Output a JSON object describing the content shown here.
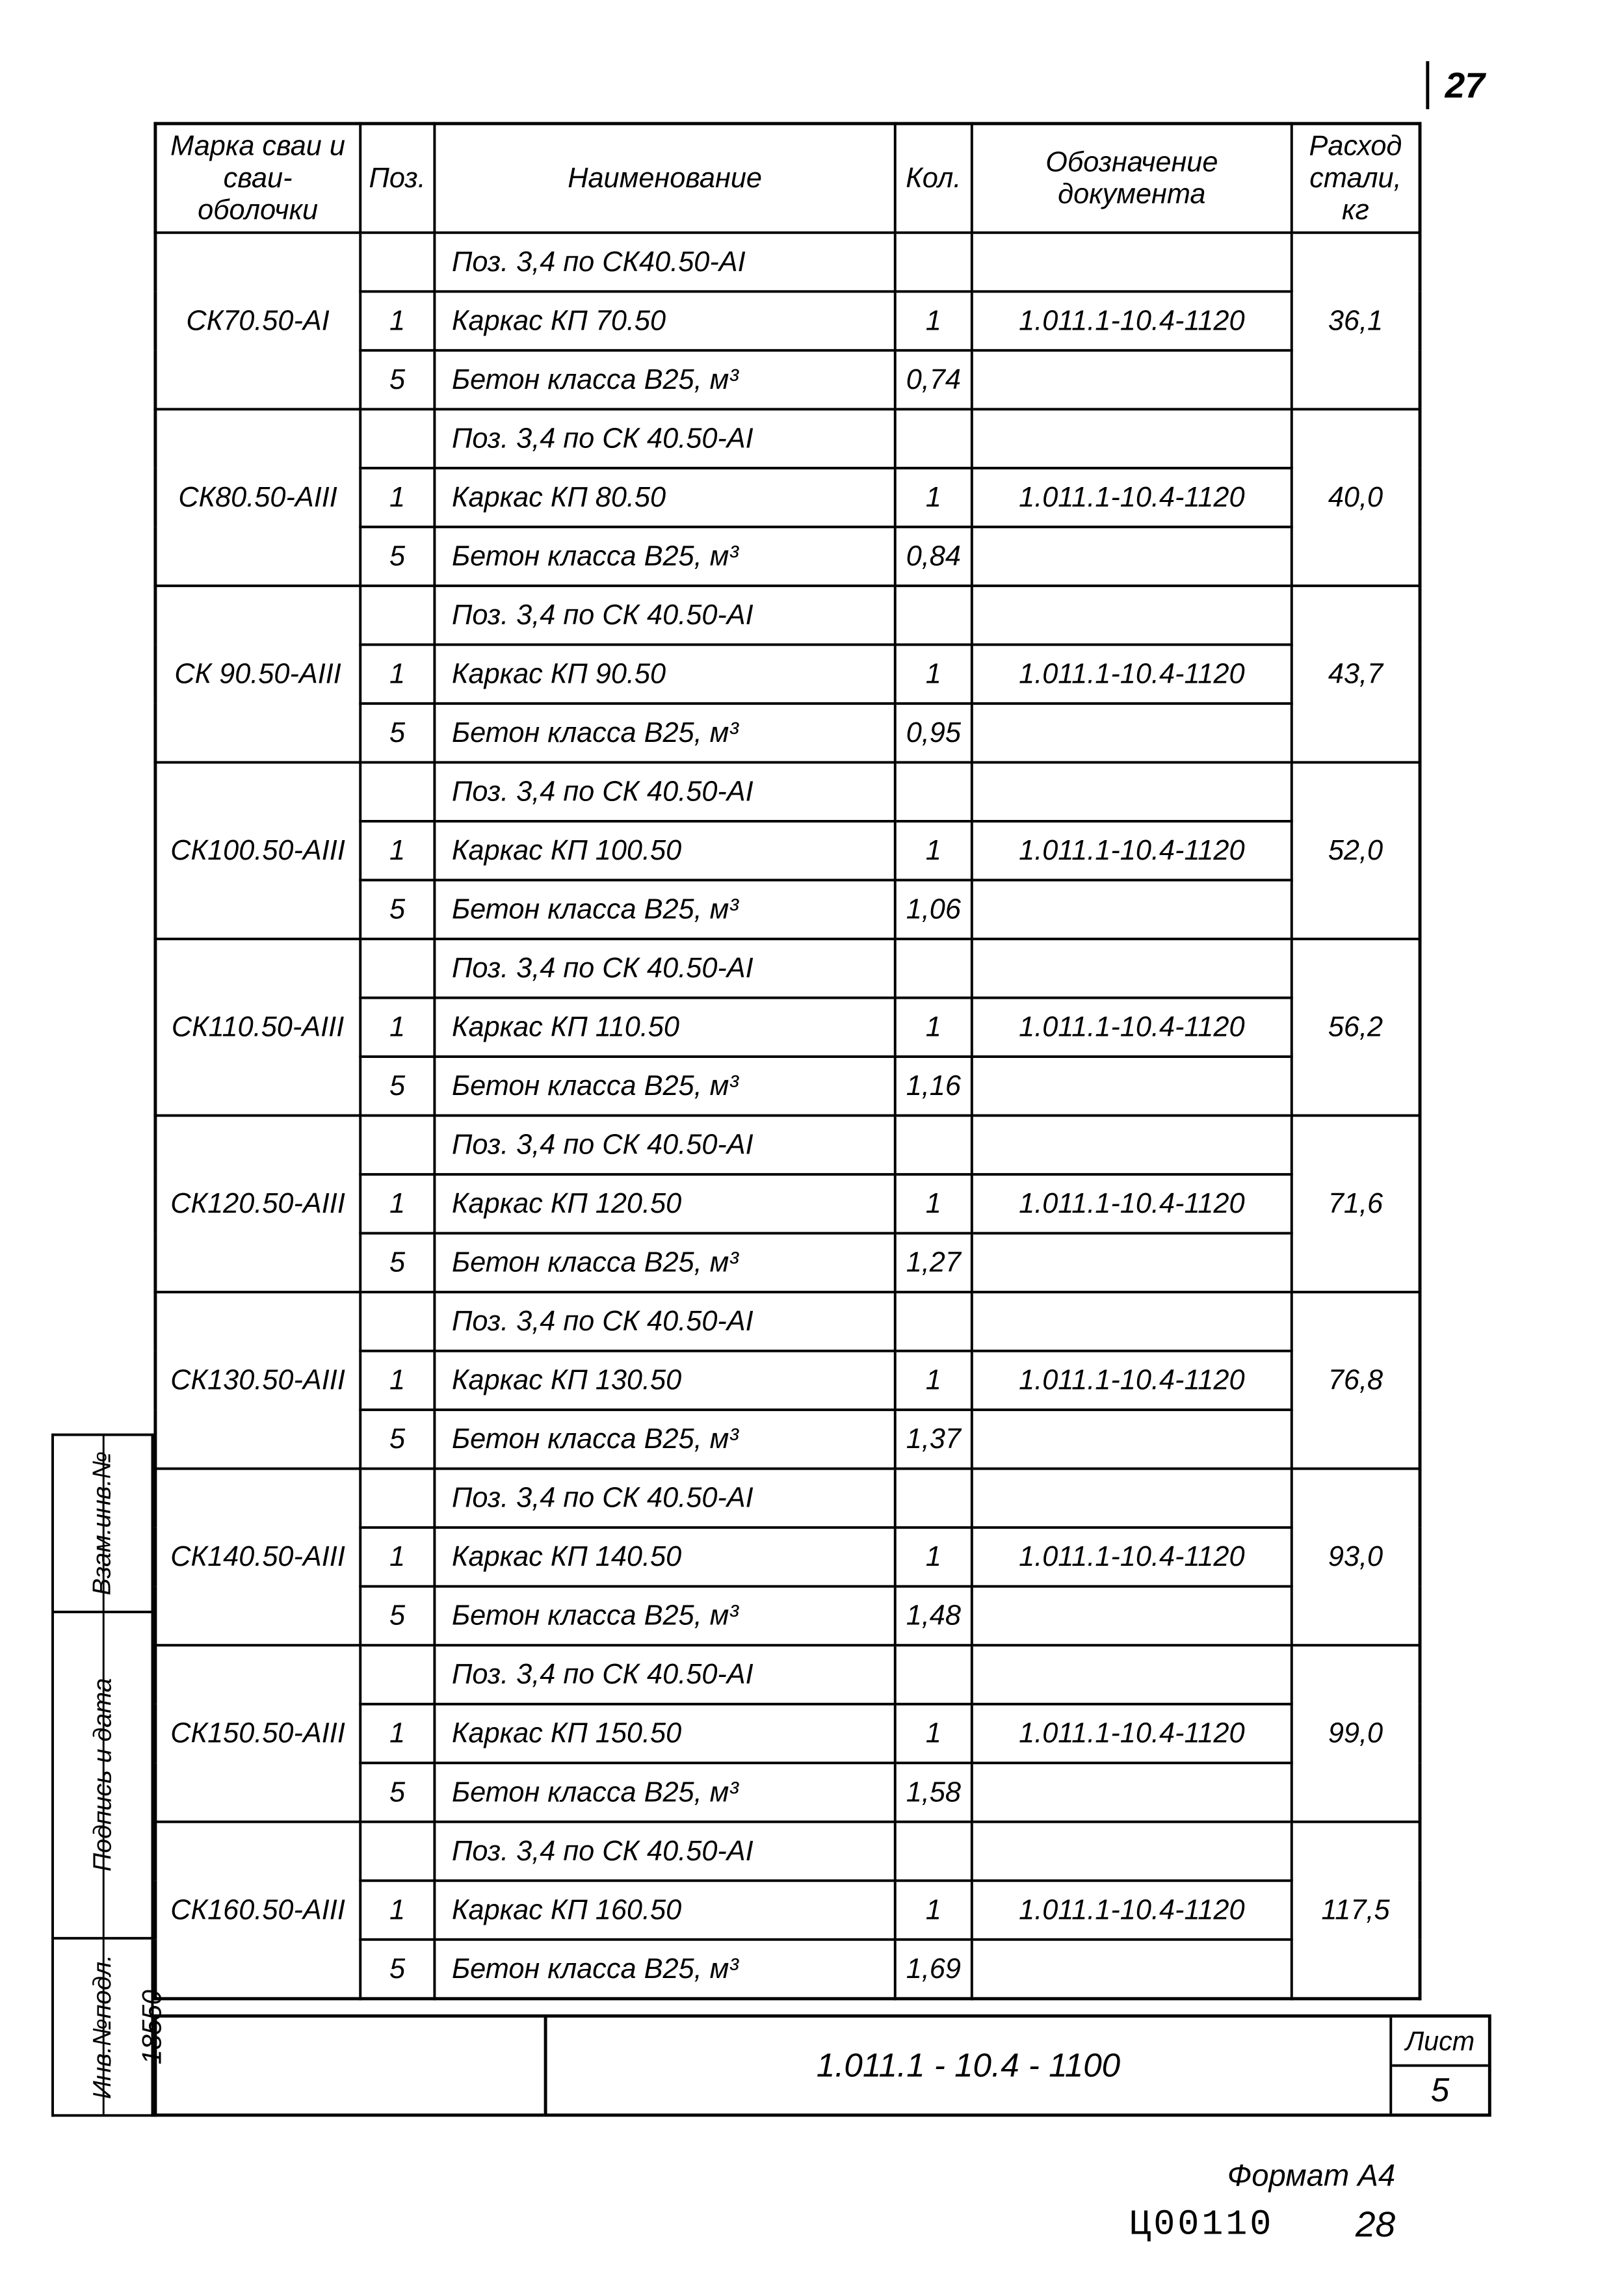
{
  "page_number_top": "27",
  "headers": {
    "marka": "Марка сваи и сваи-оболочки",
    "poz": "Поз.",
    "naim": "Наименование",
    "kol": "Кол.",
    "doc": "Обозначение документа",
    "ras": "Расход стали, кг"
  },
  "groups": [
    {
      "marka": "СК70.50-АI",
      "ras": "36,1",
      "rows": [
        {
          "poz": "",
          "naim": "Поз. 3,4 по СК40.50-АI",
          "kol": "",
          "doc": ""
        },
        {
          "poz": "1",
          "naim": "Каркас КП 70.50",
          "kol": "1",
          "doc": "1.011.1-10.4-1120"
        },
        {
          "poz": "5",
          "naim": "Бетон класса В25, м³",
          "kol": "0,74",
          "doc": ""
        }
      ]
    },
    {
      "marka": "СК80.50-АIII",
      "ras": "40,0",
      "rows": [
        {
          "poz": "",
          "naim": "Поз. 3,4 по СК 40.50-АI",
          "kol": "",
          "doc": ""
        },
        {
          "poz": "1",
          "naim": "Каркас КП 80.50",
          "kol": "1",
          "doc": "1.011.1-10.4-1120"
        },
        {
          "poz": "5",
          "naim": "Бетон класса В25, м³",
          "kol": "0,84",
          "doc": ""
        }
      ]
    },
    {
      "marka": "СК 90.50-АIII",
      "ras": "43,7",
      "rows": [
        {
          "poz": "",
          "naim": "Поз. 3,4 по СК 40.50-АI",
          "kol": "",
          "doc": ""
        },
        {
          "poz": "1",
          "naim": "Каркас КП 90.50",
          "kol": "1",
          "doc": "1.011.1-10.4-1120"
        },
        {
          "poz": "5",
          "naim": "Бетон класса В25, м³",
          "kol": "0,95",
          "doc": ""
        }
      ]
    },
    {
      "marka": "СК100.50-АIII",
      "ras": "52,0",
      "rows": [
        {
          "poz": "",
          "naim": "Поз. 3,4 по СК 40.50-АI",
          "kol": "",
          "doc": ""
        },
        {
          "poz": "1",
          "naim": "Каркас КП 100.50",
          "kol": "1",
          "doc": "1.011.1-10.4-1120"
        },
        {
          "poz": "5",
          "naim": "Бетон класса В25, м³",
          "kol": "1,06",
          "doc": ""
        }
      ]
    },
    {
      "marka": "СК110.50-АIII",
      "ras": "56,2",
      "rows": [
        {
          "poz": "",
          "naim": "Поз. 3,4 по СК 40.50-АI",
          "kol": "",
          "doc": ""
        },
        {
          "poz": "1",
          "naim": "Каркас КП 110.50",
          "kol": "1",
          "doc": "1.011.1-10.4-1120"
        },
        {
          "poz": "5",
          "naim": "Бетон класса В25, м³",
          "kol": "1,16",
          "doc": ""
        }
      ]
    },
    {
      "marka": "СК120.50-АIII",
      "ras": "71,6",
      "rows": [
        {
          "poz": "",
          "naim": "Поз. 3,4 по СК 40.50-АI",
          "kol": "",
          "doc": ""
        },
        {
          "poz": "1",
          "naim": "Каркас КП 120.50",
          "kol": "1",
          "doc": "1.011.1-10.4-1120"
        },
        {
          "poz": "5",
          "naim": "Бетон класса В25, м³",
          "kol": "1,27",
          "doc": ""
        }
      ]
    },
    {
      "marka": "СК130.50-АIII",
      "ras": "76,8",
      "rows": [
        {
          "poz": "",
          "naim": "Поз. 3,4 по СК 40.50-АI",
          "kol": "",
          "doc": ""
        },
        {
          "poz": "1",
          "naim": "Каркас КП 130.50",
          "kol": "1",
          "doc": "1.011.1-10.4-1120"
        },
        {
          "poz": "5",
          "naim": "Бетон класса В25, м³",
          "kol": "1,37",
          "doc": ""
        }
      ]
    },
    {
      "marka": "СК140.50-АIII",
      "ras": "93,0",
      "rows": [
        {
          "poz": "",
          "naim": "Поз. 3,4 по СК 40.50-АI",
          "kol": "",
          "doc": ""
        },
        {
          "poz": "1",
          "naim": "Каркас КП 140.50",
          "kol": "1",
          "doc": "1.011.1-10.4-1120"
        },
        {
          "poz": "5",
          "naim": "Бетон класса В25, м³",
          "kol": "1,48",
          "doc": ""
        }
      ]
    },
    {
      "marka": "СК150.50-АIII",
      "ras": "99,0",
      "rows": [
        {
          "poz": "",
          "naim": "Поз. 3,4 по СК 40.50-АI",
          "kol": "",
          "doc": ""
        },
        {
          "poz": "1",
          "naim": "Каркас КП 150.50",
          "kol": "1",
          "doc": "1.011.1-10.4-1120"
        },
        {
          "poz": "5",
          "naim": "Бетон класса В25, м³",
          "kol": "1,58",
          "doc": ""
        }
      ]
    },
    {
      "marka": "СК160.50-АIII",
      "ras": "117,5",
      "rows": [
        {
          "poz": "",
          "naim": "Поз. 3,4 по СК 40.50-АI",
          "kol": "",
          "doc": ""
        },
        {
          "poz": "1",
          "naim": "Каркас КП 160.50",
          "kol": "1",
          "doc": "1.011.1-10.4-1120"
        },
        {
          "poz": "5",
          "naim": "Бетон класса В25, м³",
          "kol": "1,69",
          "doc": ""
        }
      ]
    }
  ],
  "stamps": {
    "vzam": "Взам.инв.№",
    "podpis": "Подпись и дата",
    "invpodl": "Инв.№подл.",
    "invnum": "18550"
  },
  "title_block": {
    "doc_code": "1.011.1 - 10.4 - 1100",
    "list_label": "Лист",
    "list_num": "5"
  },
  "footer": {
    "format": "Формат А4",
    "code": "Ц00110",
    "page": "28"
  }
}
